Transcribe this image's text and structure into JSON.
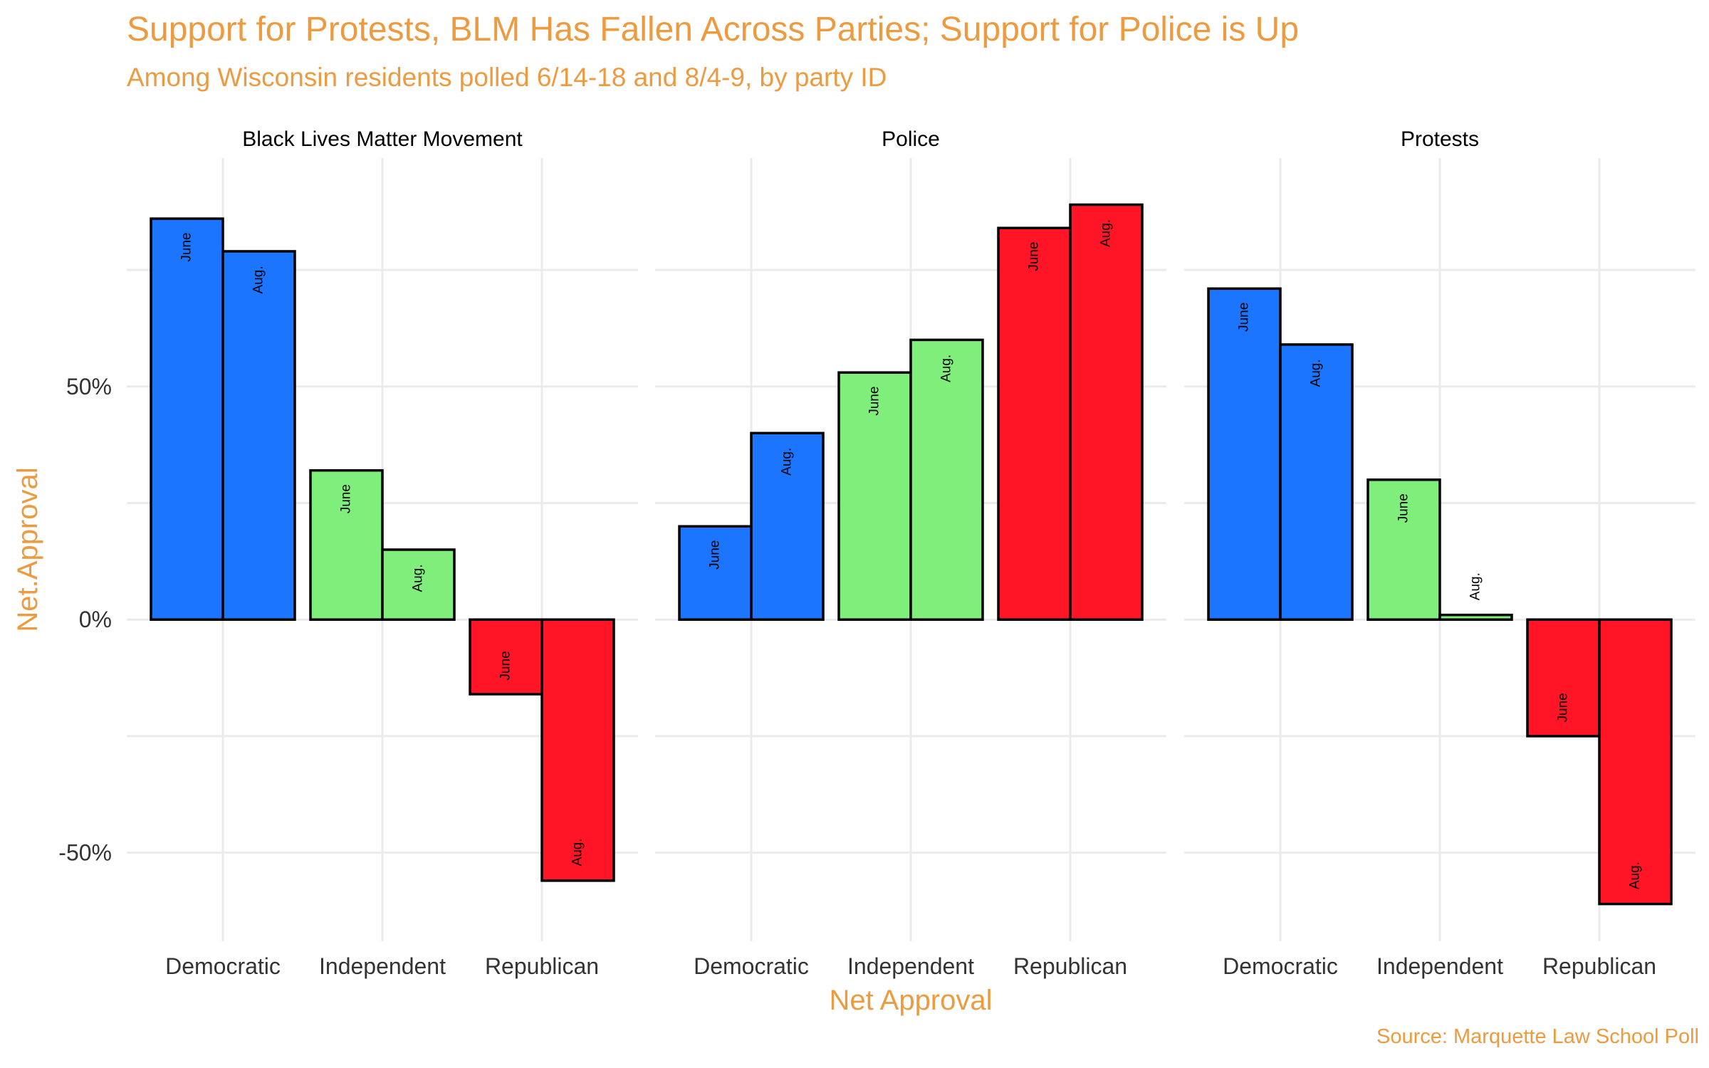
{
  "title": "Support for Protests, BLM Has Fallen Across Parties; Support for Police is Up",
  "subtitle": "Among Wisconsin residents polled 6/14-18 and 8/4-9, by party ID",
  "caption": "Source: Marquette Law School Poll",
  "colors": {
    "Democratic": "#1C75FF",
    "Independent": "#80EE7A",
    "Republican": "#FF1526",
    "accent": "#ED9B40"
  },
  "chart_data": {
    "type": "bar",
    "xlabel": "Net Approval",
    "ylabel": "Net.Approval",
    "ylim": [
      -69,
      99
    ],
    "yticks": [
      -50,
      0,
      50
    ],
    "ytick_labels": [
      "-50%",
      "0%",
      "50%"
    ],
    "categories": [
      "Democratic",
      "Independent",
      "Republican"
    ],
    "series_names": [
      "June",
      "Aug."
    ],
    "panels": [
      {
        "name": "Black Lives Matter Movement",
        "values": {
          "Democratic": [
            86,
            79
          ],
          "Independent": [
            32,
            15
          ],
          "Republican": [
            -16,
            -56
          ]
        }
      },
      {
        "name": "Police",
        "values": {
          "Democratic": [
            20,
            40
          ],
          "Independent": [
            53,
            60
          ],
          "Republican": [
            84,
            89
          ]
        }
      },
      {
        "name": "Protests",
        "values": {
          "Democratic": [
            71,
            59
          ],
          "Independent": [
            30,
            1
          ],
          "Republican": [
            -25,
            -61
          ]
        }
      }
    ]
  }
}
